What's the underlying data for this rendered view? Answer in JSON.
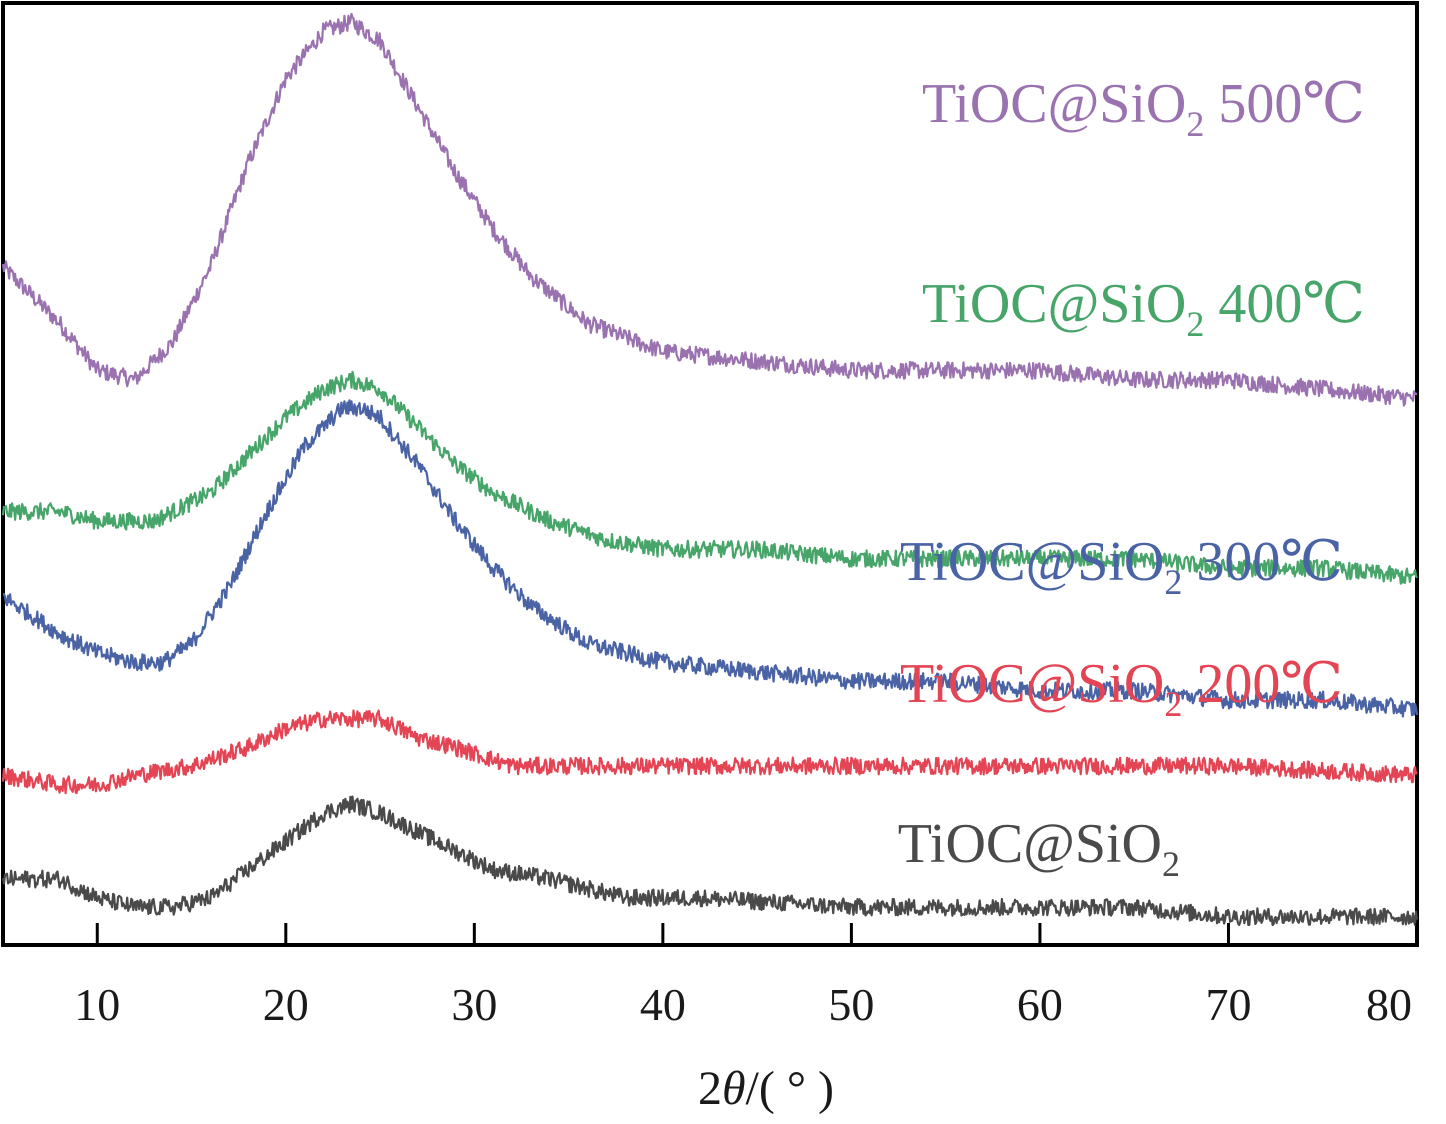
{
  "chart_data": {
    "type": "line",
    "xlabel_prefix": "2",
    "xlabel_var": "θ",
    "xlabel_suffix": "/( ° )",
    "ylabel": "",
    "xlim": [
      5,
      80
    ],
    "x_ticks": [
      10,
      20,
      30,
      40,
      50,
      60,
      70,
      80
    ],
    "grid": false,
    "series": [
      {
        "name": "TiOC@SiO2 500℃",
        "label_main": "TiOC@SiO",
        "label_sub": "2",
        "label_tail": " 500℃",
        "color": "#9b72b0",
        "points": [
          [
            5,
            0.72
          ],
          [
            8,
            0.66
          ],
          [
            10,
            0.61
          ],
          [
            12,
            0.6
          ],
          [
            14,
            0.64
          ],
          [
            16,
            0.72
          ],
          [
            18,
            0.83
          ],
          [
            20,
            0.92
          ],
          [
            22,
            0.97
          ],
          [
            23.5,
            0.98
          ],
          [
            25,
            0.96
          ],
          [
            27,
            0.89
          ],
          [
            29,
            0.82
          ],
          [
            31,
            0.76
          ],
          [
            33,
            0.71
          ],
          [
            36,
            0.66
          ],
          [
            40,
            0.63
          ],
          [
            45,
            0.62
          ],
          [
            50,
            0.61
          ],
          [
            55,
            0.61
          ],
          [
            60,
            0.61
          ],
          [
            65,
            0.6
          ],
          [
            70,
            0.6
          ],
          [
            75,
            0.59
          ],
          [
            80,
            0.58
          ]
        ]
      },
      {
        "name": "TiOC@SiO2 400℃",
        "label_main": "TiOC@SiO",
        "label_sub": "2",
        "label_tail": " 400℃",
        "color": "#48a56a",
        "points": [
          [
            5,
            0.46
          ],
          [
            8,
            0.46
          ],
          [
            10,
            0.45
          ],
          [
            13,
            0.45
          ],
          [
            16,
            0.48
          ],
          [
            18,
            0.52
          ],
          [
            20,
            0.56
          ],
          [
            22,
            0.59
          ],
          [
            23.5,
            0.6
          ],
          [
            25,
            0.59
          ],
          [
            27,
            0.55
          ],
          [
            29,
            0.51
          ],
          [
            31,
            0.48
          ],
          [
            34,
            0.45
          ],
          [
            37,
            0.43
          ],
          [
            40,
            0.42
          ],
          [
            45,
            0.42
          ],
          [
            50,
            0.41
          ],
          [
            55,
            0.41
          ],
          [
            60,
            0.41
          ],
          [
            65,
            0.41
          ],
          [
            70,
            0.4
          ],
          [
            75,
            0.4
          ],
          [
            80,
            0.39
          ]
        ]
      },
      {
        "name": "TiOC@SiO2 300℃",
        "label_main": "TiOC@SiO",
        "label_sub": "2",
        "label_tail": " 300℃",
        "color": "#4a63a5",
        "points": [
          [
            5,
            0.37
          ],
          [
            8,
            0.33
          ],
          [
            10,
            0.31
          ],
          [
            12,
            0.3
          ],
          [
            13.5,
            0.3
          ],
          [
            15,
            0.32
          ],
          [
            17,
            0.38
          ],
          [
            19,
            0.46
          ],
          [
            21,
            0.53
          ],
          [
            23,
            0.57
          ],
          [
            24,
            0.57
          ],
          [
            25,
            0.56
          ],
          [
            27,
            0.51
          ],
          [
            29,
            0.45
          ],
          [
            31,
            0.4
          ],
          [
            33,
            0.36
          ],
          [
            36,
            0.32
          ],
          [
            40,
            0.3
          ],
          [
            45,
            0.29
          ],
          [
            50,
            0.28
          ],
          [
            55,
            0.28
          ],
          [
            60,
            0.27
          ],
          [
            65,
            0.27
          ],
          [
            70,
            0.26
          ],
          [
            75,
            0.26
          ],
          [
            80,
            0.25
          ]
        ]
      },
      {
        "name": "TiOC@SiO2 200℃",
        "label_main": "TiOC@SiO",
        "label_sub": "2",
        "label_tail": " 200℃",
        "color": "#e44554",
        "points": [
          [
            5,
            0.18
          ],
          [
            8,
            0.17
          ],
          [
            10,
            0.17
          ],
          [
            12,
            0.18
          ],
          [
            15,
            0.19
          ],
          [
            18,
            0.21
          ],
          [
            20,
            0.23
          ],
          [
            22,
            0.24
          ],
          [
            23.5,
            0.24
          ],
          [
            25,
            0.24
          ],
          [
            27,
            0.22
          ],
          [
            29,
            0.21
          ],
          [
            32,
            0.19
          ],
          [
            35,
            0.19
          ],
          [
            40,
            0.19
          ],
          [
            50,
            0.19
          ],
          [
            60,
            0.19
          ],
          [
            70,
            0.19
          ],
          [
            80,
            0.18
          ]
        ]
      },
      {
        "name": "TiOC@SiO2",
        "label_main": "TiOC@SiO",
        "label_sub": "2",
        "label_tail": "",
        "color": "#4a4a4a",
        "points": [
          [
            5,
            0.07
          ],
          [
            8,
            0.07
          ],
          [
            10,
            0.05
          ],
          [
            12,
            0.04
          ],
          [
            14,
            0.04
          ],
          [
            16,
            0.05
          ],
          [
            18,
            0.08
          ],
          [
            20,
            0.11
          ],
          [
            22,
            0.14
          ],
          [
            23.5,
            0.15
          ],
          [
            25,
            0.14
          ],
          [
            27,
            0.12
          ],
          [
            29,
            0.1
          ],
          [
            31,
            0.08
          ],
          [
            34,
            0.07
          ],
          [
            38,
            0.05
          ],
          [
            42,
            0.05
          ],
          [
            50,
            0.04
          ],
          [
            60,
            0.04
          ],
          [
            65,
            0.04
          ],
          [
            70,
            0.03
          ],
          [
            75,
            0.03
          ],
          [
            80,
            0.03
          ]
        ]
      }
    ]
  }
}
